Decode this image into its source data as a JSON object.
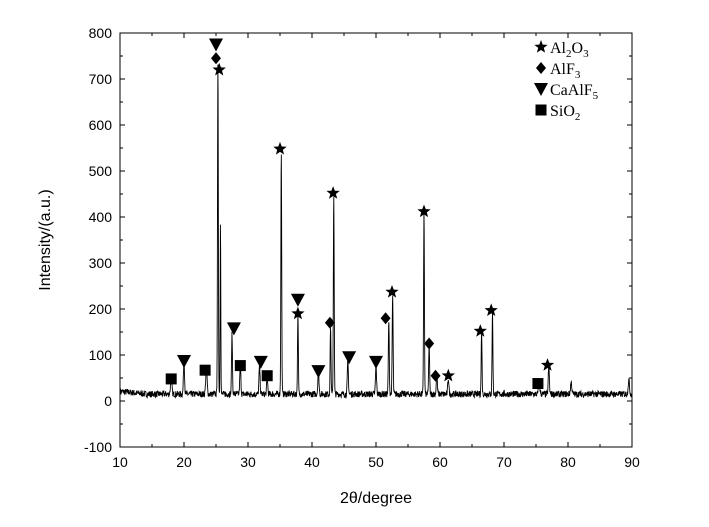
{
  "chart_data": {
    "type": "line",
    "xlabel": "2θ/degree",
    "ylabel": "Intensity/(a.u.)",
    "xlim": [
      10,
      90
    ],
    "ylim": [
      -100,
      800
    ],
    "x_ticks": [
      10,
      20,
      30,
      40,
      50,
      60,
      70,
      80,
      90
    ],
    "y_ticks": [
      -100,
      0,
      100,
      200,
      300,
      400,
      500,
      600,
      700,
      800
    ],
    "grid": false,
    "legend_position": "top-right",
    "legend": [
      {
        "marker": "star",
        "base": "Al",
        "sub1": "2",
        "mid": "O",
        "sub2": "3"
      },
      {
        "marker": "diamond",
        "base": "AlF",
        "sub1": "3",
        "mid": "",
        "sub2": ""
      },
      {
        "marker": "triangle-down",
        "base": "CaAlF",
        "sub1": "5",
        "mid": "",
        "sub2": ""
      },
      {
        "marker": "square",
        "base": "SiO",
        "sub1": "2",
        "mid": "",
        "sub2": ""
      }
    ],
    "baseline": 15,
    "peaks": [
      {
        "x": 18.0,
        "y": 35,
        "w": 0.15
      },
      {
        "x": 20.0,
        "y": 75,
        "w": 0.12
      },
      {
        "x": 23.5,
        "y": 55,
        "w": 0.15
      },
      {
        "x": 25.3,
        "y": 720,
        "w": 0.09
      },
      {
        "x": 25.7,
        "y": 380,
        "w": 0.07
      },
      {
        "x": 27.5,
        "y": 130,
        "w": 0.1
      },
      {
        "x": 28.8,
        "y": 60,
        "w": 0.12
      },
      {
        "x": 31.8,
        "y": 60,
        "w": 0.12
      },
      {
        "x": 33.0,
        "y": 35,
        "w": 0.12
      },
      {
        "x": 35.2,
        "y": 530,
        "w": 0.09
      },
      {
        "x": 37.8,
        "y": 175,
        "w": 0.09
      },
      {
        "x": 41.0,
        "y": 55,
        "w": 0.12
      },
      {
        "x": 42.9,
        "y": 150,
        "w": 0.09
      },
      {
        "x": 43.4,
        "y": 440,
        "w": 0.09
      },
      {
        "x": 45.6,
        "y": 70,
        "w": 0.12
      },
      {
        "x": 50.0,
        "y": 60,
        "w": 0.12
      },
      {
        "x": 52.0,
        "y": 160,
        "w": 0.1
      },
      {
        "x": 52.6,
        "y": 215,
        "w": 0.1
      },
      {
        "x": 57.5,
        "y": 405,
        "w": 0.09
      },
      {
        "x": 58.3,
        "y": 110,
        "w": 0.1
      },
      {
        "x": 59.5,
        "y": 40,
        "w": 0.12
      },
      {
        "x": 61.3,
        "y": 35,
        "w": 0.12
      },
      {
        "x": 66.5,
        "y": 140,
        "w": 0.09
      },
      {
        "x": 68.2,
        "y": 180,
        "w": 0.09
      },
      {
        "x": 75.5,
        "y": 25,
        "w": 0.15
      },
      {
        "x": 77.0,
        "y": 60,
        "w": 0.12
      },
      {
        "x": 80.5,
        "y": 25,
        "w": 0.15
      },
      {
        "x": 89.5,
        "y": 30,
        "w": 0.15
      }
    ],
    "markers": [
      {
        "type": "triangle-down",
        "x": 25.0,
        "y": 775
      },
      {
        "type": "diamond",
        "x": 25.0,
        "y": 745
      },
      {
        "type": "star",
        "x": 25.5,
        "y": 720
      },
      {
        "type": "star",
        "x": 35.0,
        "y": 548
      },
      {
        "type": "star",
        "x": 43.3,
        "y": 452
      },
      {
        "type": "star",
        "x": 57.5,
        "y": 412
      },
      {
        "type": "star",
        "x": 52.5,
        "y": 237
      },
      {
        "type": "triangle-down",
        "x": 37.8,
        "y": 220
      },
      {
        "type": "star",
        "x": 68.0,
        "y": 197
      },
      {
        "type": "star",
        "x": 37.8,
        "y": 190
      },
      {
        "type": "diamond",
        "x": 51.5,
        "y": 180
      },
      {
        "type": "diamond",
        "x": 42.8,
        "y": 170
      },
      {
        "type": "triangle-down",
        "x": 27.8,
        "y": 158
      },
      {
        "type": "star",
        "x": 66.3,
        "y": 152
      },
      {
        "type": "diamond",
        "x": 58.3,
        "y": 125
      },
      {
        "type": "triangle-down",
        "x": 45.8,
        "y": 95
      },
      {
        "type": "triangle-down",
        "x": 20.0,
        "y": 87
      },
      {
        "type": "triangle-down",
        "x": 32.0,
        "y": 85
      },
      {
        "type": "triangle-down",
        "x": 50.0,
        "y": 85
      },
      {
        "type": "star",
        "x": 76.8,
        "y": 78
      },
      {
        "type": "square",
        "x": 28.8,
        "y": 77
      },
      {
        "type": "triangle-down",
        "x": 41.0,
        "y": 65
      },
      {
        "type": "square",
        "x": 23.3,
        "y": 67
      },
      {
        "type": "diamond",
        "x": 59.3,
        "y": 55
      },
      {
        "type": "star",
        "x": 61.3,
        "y": 55
      },
      {
        "type": "square",
        "x": 33.0,
        "y": 55
      },
      {
        "type": "square",
        "x": 18.0,
        "y": 48
      },
      {
        "type": "square",
        "x": 75.3,
        "y": 38
      }
    ]
  }
}
